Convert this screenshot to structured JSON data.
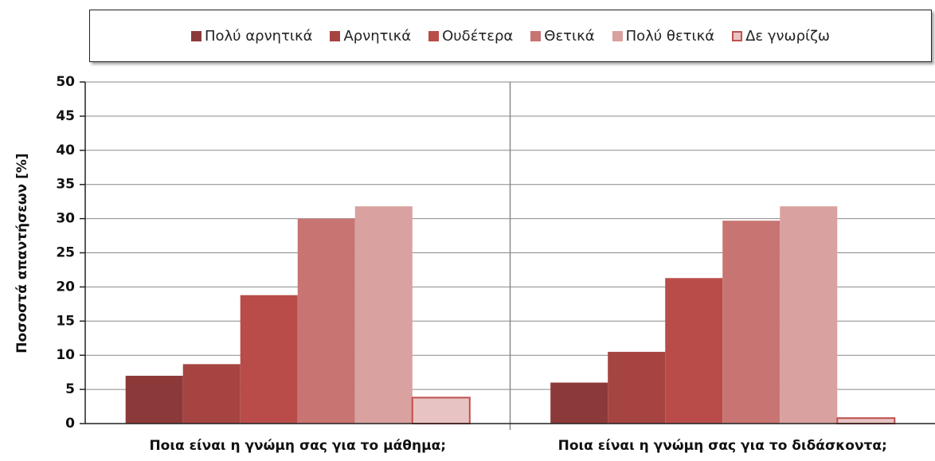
{
  "chart_data": {
    "type": "bar",
    "y_label": "Ποσοστά απαντήσεων [%]",
    "categories": [
      "Ποια είναι η γνώμη σας για το μάθημα;",
      "Ποια είναι η γνώμη σας για το διδάσκοντα;"
    ],
    "series": [
      {
        "name": "Πολύ αρνητικά",
        "color": "#8c3a39",
        "values": [
          7.0,
          6.0
        ]
      },
      {
        "name": "Αρνητικά",
        "color": "#a64442",
        "values": [
          8.7,
          10.5
        ]
      },
      {
        "name": "Ουδέτερα",
        "color": "#b94c49",
        "values": [
          18.8,
          21.3
        ]
      },
      {
        "name": "Θετικά",
        "color": "#c87472",
        "values": [
          30.0,
          29.7
        ]
      },
      {
        "name": "Πολύ θετικά",
        "color": "#d9a19f",
        "values": [
          31.8,
          31.8
        ]
      },
      {
        "name": "Δε γνωρίζω",
        "color": "#e8c3c3",
        "edgecolor": "#c0504d",
        "values": [
          3.8,
          0.8
        ]
      }
    ],
    "ylim": [
      0,
      50
    ],
    "yticks": [
      0,
      5,
      10,
      15,
      20,
      25,
      30,
      35,
      40,
      45,
      50
    ],
    "grid": true
  }
}
